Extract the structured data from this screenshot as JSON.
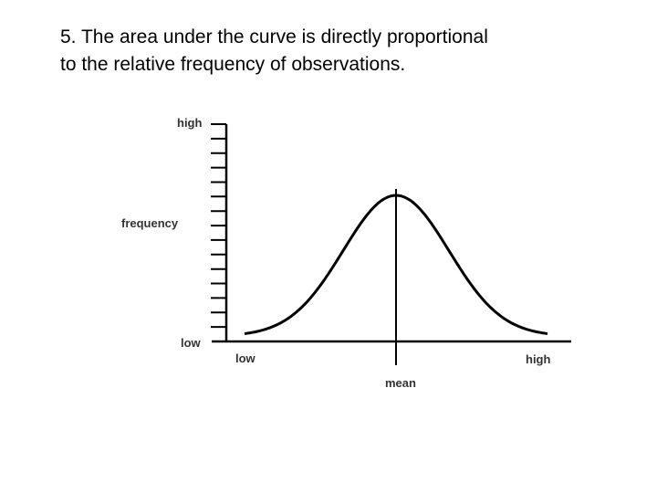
{
  "slide": {
    "title_line1": "5. The area under the curve is directly proportional",
    "title_line2": "to the relative frequency of observations."
  },
  "diagram": {
    "y_axis": {
      "label": "frequency",
      "top_label": "high",
      "bottom_label": "low",
      "tick_count": 15
    },
    "x_axis": {
      "left_label": "low",
      "right_label": "high",
      "center_label": "mean"
    },
    "curve": {
      "shape": "normal distribution (bell curve)",
      "color": "#000000"
    }
  }
}
